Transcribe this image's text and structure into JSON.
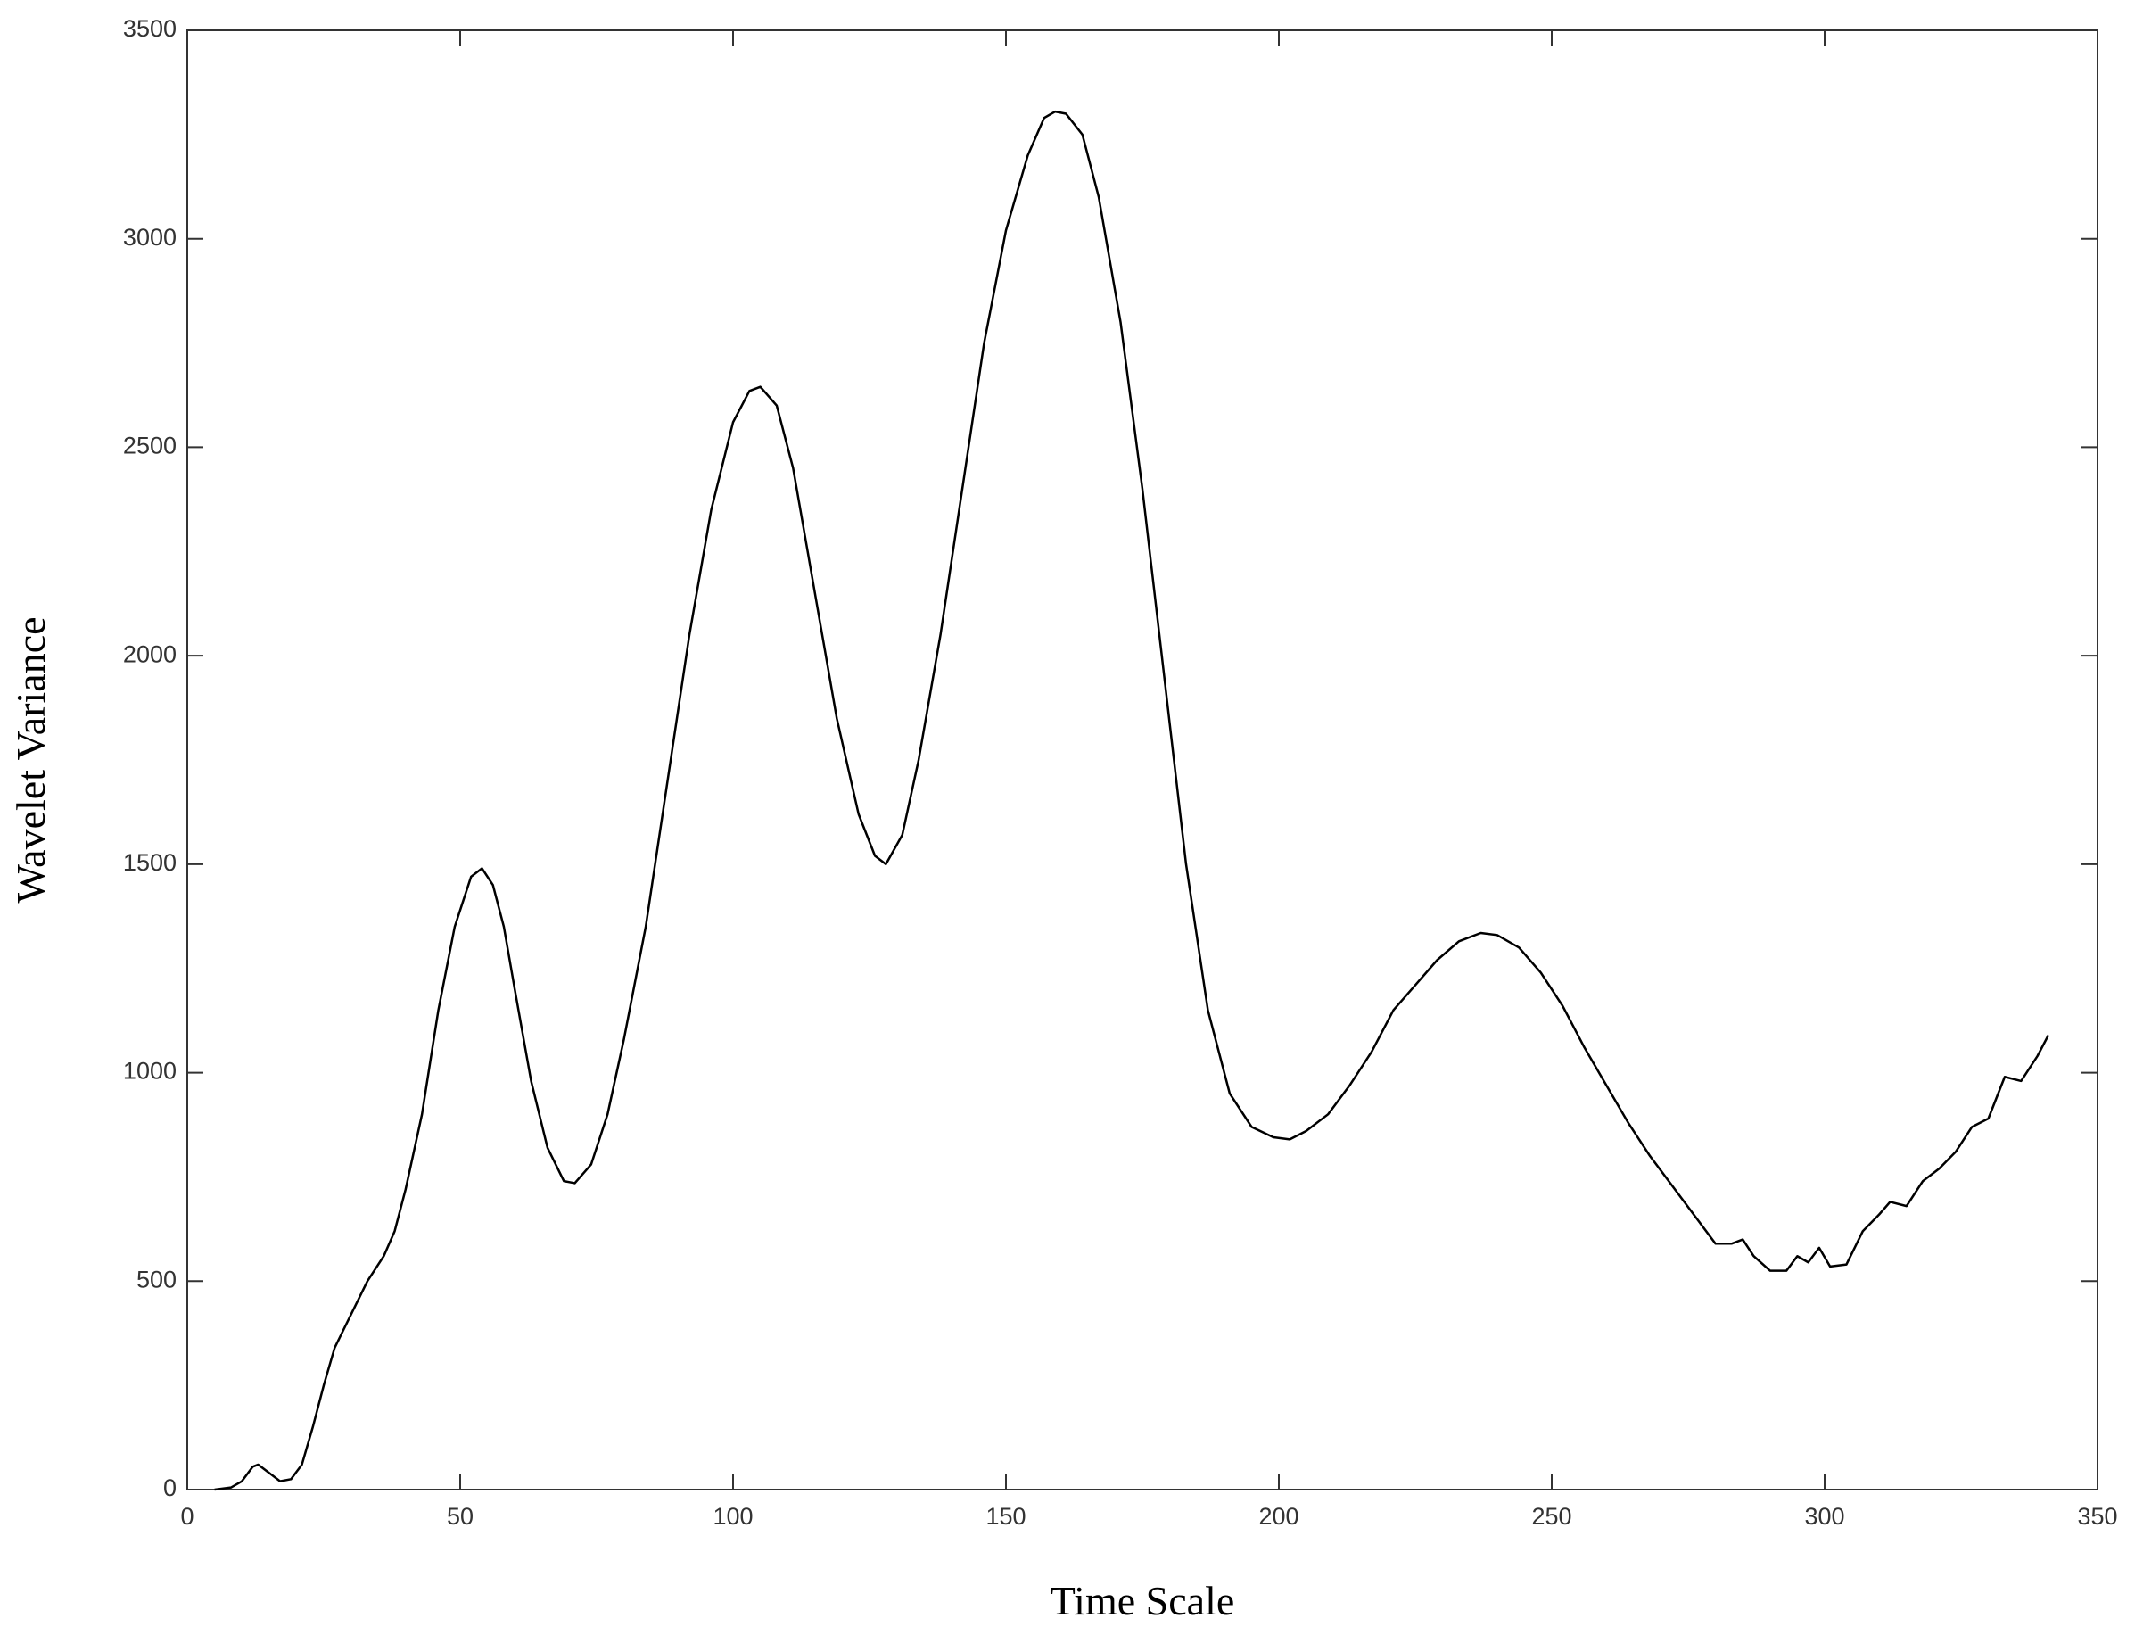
{
  "chart_data": {
    "type": "line",
    "xlabel": "Time Scale",
    "ylabel": "Wavelet Variance",
    "xlim": [
      0,
      350
    ],
    "xticks": [
      0,
      50,
      100,
      150,
      200,
      250,
      300,
      350
    ],
    "ylim": [
      0,
      3500
    ],
    "yticks": [
      0,
      500,
      1000,
      1500,
      2000,
      2500,
      3000,
      3500
    ],
    "grid": false,
    "series": [
      {
        "color": "#000000",
        "x": [
          5,
          8,
          10,
          12,
          13,
          15,
          17,
          19,
          21,
          23,
          25,
          27,
          30,
          33,
          36,
          38,
          40,
          43,
          46,
          49,
          52,
          54,
          56,
          58,
          60,
          63,
          66,
          69,
          71,
          74,
          77,
          80,
          84,
          88,
          92,
          96,
          100,
          103,
          105,
          108,
          111,
          115,
          119,
          123,
          126,
          128,
          131,
          134,
          138,
          142,
          146,
          150,
          154,
          157,
          159,
          161,
          164,
          167,
          171,
          175,
          179,
          183,
          187,
          191,
          195,
          199,
          202,
          205,
          209,
          213,
          217,
          221,
          225,
          229,
          233,
          237,
          240,
          244,
          248,
          252,
          256,
          260,
          264,
          268,
          272,
          276,
          280,
          283,
          285,
          287,
          290,
          293,
          295,
          297,
          299,
          301,
          304,
          307,
          310,
          312,
          315,
          318,
          321,
          324,
          327,
          330,
          333,
          336,
          339,
          341
        ],
        "values": [
          0,
          5,
          20,
          55,
          60,
          40,
          20,
          25,
          60,
          150,
          250,
          340,
          420,
          500,
          560,
          620,
          720,
          900,
          1150,
          1350,
          1470,
          1490,
          1450,
          1350,
          1200,
          980,
          820,
          740,
          735,
          780,
          900,
          1080,
          1350,
          1700,
          2050,
          2350,
          2560,
          2635,
          2645,
          2600,
          2450,
          2150,
          1850,
          1620,
          1520,
          1500,
          1570,
          1750,
          2050,
          2400,
          2750,
          3020,
          3200,
          3290,
          3305,
          3300,
          3250,
          3100,
          2800,
          2400,
          1950,
          1500,
          1150,
          950,
          870,
          845,
          840,
          860,
          900,
          970,
          1050,
          1150,
          1210,
          1270,
          1315,
          1335,
          1330,
          1300,
          1240,
          1160,
          1060,
          970,
          880,
          800,
          730,
          660,
          590,
          590,
          600,
          560,
          525,
          525,
          560,
          545,
          580,
          535,
          540,
          620,
          660,
          690,
          680,
          740,
          770,
          810,
          870,
          890,
          990,
          980,
          1040,
          1090
        ]
      }
    ]
  }
}
